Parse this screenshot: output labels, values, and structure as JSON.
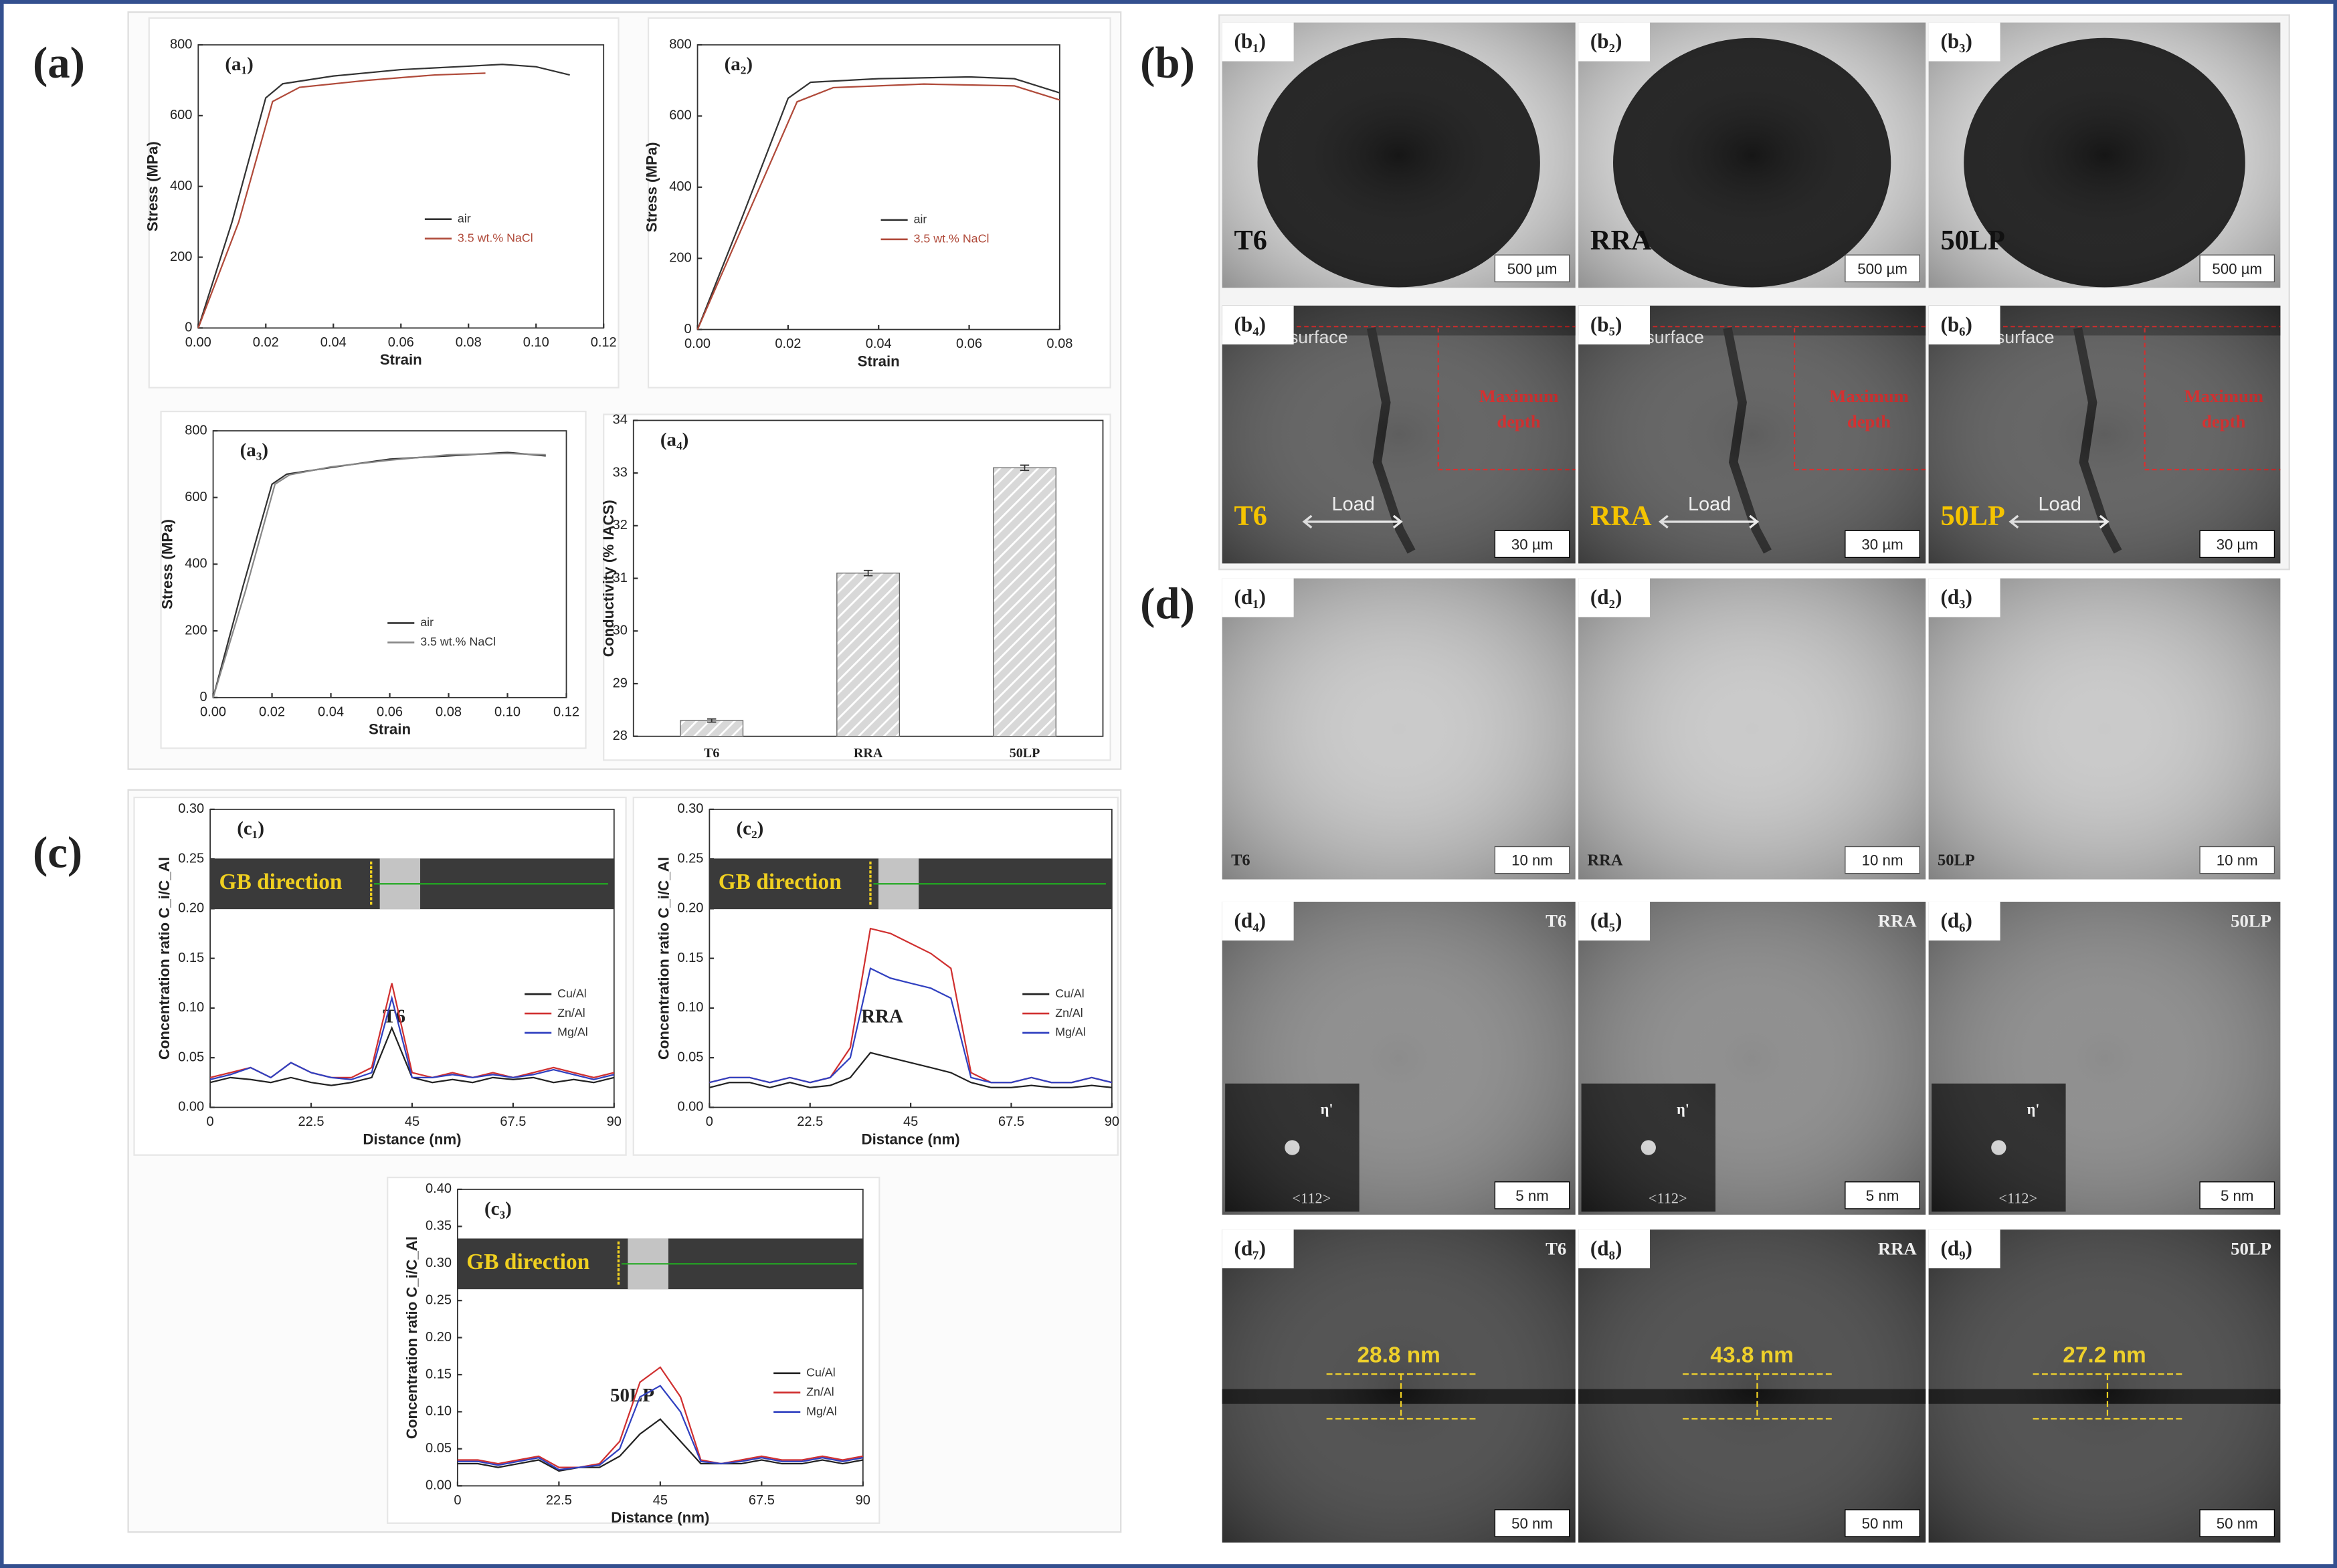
{
  "panels": {
    "a": "(a)",
    "b": "(b)",
    "c": "(c)",
    "d": "(d)"
  },
  "chart_data": [
    {
      "type": "line",
      "panel": "(a₁)",
      "xlabel": "Strain",
      "ylabel": "Stress (MPa)",
      "xlim": [
        0,
        0.12
      ],
      "ylim": [
        0,
        800
      ],
      "xticks": [
        {
          "value": 0,
          "label": "0.00"
        },
        0.02,
        0.04,
        0.06,
        0.08,
        {
          "value": 0.1,
          "label": "0.10"
        },
        0.12
      ],
      "yticks": [
        0,
        200,
        400,
        600,
        800
      ],
      "legend": "center-right",
      "series": [
        {
          "name": "air",
          "color": "#333333",
          "x": [
            0,
            0.01,
            0.02,
            0.025,
            0.04,
            0.06,
            0.08,
            0.09,
            0.1,
            0.11
          ],
          "values": [
            0,
            300,
            650,
            690,
            712,
            730,
            740,
            745,
            738,
            715
          ]
        },
        {
          "name": "3.5 wt.% NaCl",
          "color": "#b04a3a",
          "x": [
            0,
            0.012,
            0.022,
            0.03,
            0.05,
            0.07,
            0.085
          ],
          "values": [
            0,
            300,
            640,
            680,
            700,
            715,
            720
          ]
        }
      ]
    },
    {
      "type": "line",
      "panel": "(a₂)",
      "xlabel": "Strain",
      "ylabel": "Stress (MPa)",
      "xlim": [
        0,
        0.08
      ],
      "ylim": [
        0,
        800
      ],
      "xticks": [
        {
          "value": 0,
          "label": "0.00"
        },
        0.02,
        0.04,
        0.06,
        0.08
      ],
      "yticks": [
        0,
        200,
        400,
        600,
        800
      ],
      "legend": "center-right",
      "series": [
        {
          "name": "air",
          "color": "#333333",
          "x": [
            0,
            0.01,
            0.02,
            0.025,
            0.04,
            0.06,
            0.07,
            0.08
          ],
          "values": [
            0,
            320,
            650,
            695,
            705,
            710,
            705,
            665
          ]
        },
        {
          "name": "3.5 wt.% NaCl",
          "color": "#b04a3a",
          "x": [
            0,
            0.011,
            0.022,
            0.03,
            0.05,
            0.07,
            0.08
          ],
          "values": [
            0,
            320,
            640,
            680,
            690,
            685,
            645
          ]
        }
      ]
    },
    {
      "type": "line",
      "panel": "(a₃)",
      "xlabel": "Strain",
      "ylabel": "Stress (MPa)",
      "xlim": [
        0,
        0.12
      ],
      "ylim": [
        0,
        800
      ],
      "xticks": [
        {
          "value": 0,
          "label": "0.00"
        },
        0.02,
        0.04,
        0.06,
        0.08,
        {
          "value": 0.1,
          "label": "0.10"
        },
        0.12
      ],
      "yticks": [
        0,
        200,
        400,
        600,
        800
      ],
      "legend": "bottom-right",
      "series": [
        {
          "name": "air",
          "color": "#333333",
          "x": [
            0,
            0.01,
            0.02,
            0.025,
            0.04,
            0.06,
            0.08,
            0.1,
            0.113
          ],
          "values": [
            0,
            330,
            640,
            670,
            690,
            715,
            725,
            735,
            725
          ]
        },
        {
          "name": "3.5 wt.% NaCl",
          "color": "#888888",
          "x": [
            0,
            0.011,
            0.021,
            0.026,
            0.04,
            0.06,
            0.08,
            0.1,
            0.113
          ],
          "values": [
            0,
            320,
            640,
            668,
            692,
            712,
            728,
            732,
            728
          ]
        }
      ]
    },
    {
      "type": "bar",
      "panel": "(a₄)",
      "ylabel": "Conductivity (% IACS)",
      "categories": [
        "T6",
        "RRA",
        "50LP"
      ],
      "values": [
        28.3,
        31.1,
        33.1
      ],
      "errors": [
        0.03,
        0.05,
        0.05
      ],
      "color": "#cfcfcf",
      "ylim": [
        28,
        34
      ],
      "yticks": [
        28,
        29,
        30,
        31,
        32,
        33,
        34
      ]
    },
    {
      "type": "line",
      "panel": "(c₁)",
      "xlabel": "Distance (nm)",
      "ylabel": "Concentration ratio C_i/C_Al",
      "inset_label": "GB direction",
      "sample_label": "T6",
      "legend": "center-right",
      "xlim": [
        0,
        90
      ],
      "ylim": [
        0,
        0.3
      ],
      "xticks": [
        0,
        22.5,
        45,
        67.5,
        90
      ],
      "yticks": [
        {
          "value": 0,
          "label": "0.00"
        },
        0.05,
        {
          "value": 0.1,
          "label": "0.10"
        },
        0.15,
        {
          "value": 0.2,
          "label": "0.20"
        },
        0.25,
        {
          "value": 0.3,
          "label": "0.30"
        }
      ],
      "x": [
        0,
        4.5,
        9,
        13.5,
        18,
        22.5,
        27,
        31.5,
        36,
        40.5,
        45,
        49.5,
        54,
        58.5,
        63,
        67.5,
        72,
        76.5,
        81,
        85.5,
        90
      ],
      "series": [
        {
          "name": "Cu/Al",
          "color": "#222222",
          "values": [
            0.025,
            0.03,
            0.028,
            0.025,
            0.03,
            0.025,
            0.022,
            0.025,
            0.03,
            0.08,
            0.03,
            0.025,
            0.028,
            0.025,
            0.03,
            0.028,
            0.03,
            0.025,
            0.028,
            0.025,
            0.03
          ]
        },
        {
          "name": "Zn/Al",
          "color": "#d03030",
          "values": [
            0.03,
            0.035,
            0.04,
            0.03,
            0.045,
            0.035,
            0.03,
            0.03,
            0.04,
            0.125,
            0.035,
            0.03,
            0.035,
            0.03,
            0.035,
            0.03,
            0.035,
            0.04,
            0.035,
            0.03,
            0.035
          ]
        },
        {
          "name": "Mg/Al",
          "color": "#3040c0",
          "values": [
            0.028,
            0.033,
            0.04,
            0.03,
            0.045,
            0.035,
            0.03,
            0.028,
            0.035,
            0.11,
            0.03,
            0.03,
            0.033,
            0.03,
            0.033,
            0.03,
            0.033,
            0.038,
            0.033,
            0.028,
            0.033
          ]
        }
      ]
    },
    {
      "type": "line",
      "panel": "(c₂)",
      "xlabel": "Distance (nm)",
      "ylabel": "Concentration ratio C_i/C_Al",
      "inset_label": "GB direction",
      "sample_label": "RRA",
      "legend": "center-right",
      "xlim": [
        0,
        90
      ],
      "ylim": [
        0,
        0.3
      ],
      "xticks": [
        0,
        22.5,
        45,
        67.5,
        90
      ],
      "yticks": [
        {
          "value": 0,
          "label": "0.00"
        },
        0.05,
        {
          "value": 0.1,
          "label": "0.10"
        },
        0.15,
        {
          "value": 0.2,
          "label": "0.20"
        },
        0.25,
        {
          "value": 0.3,
          "label": "0.30"
        }
      ],
      "x": [
        0,
        4.5,
        9,
        13.5,
        18,
        22.5,
        27,
        31.5,
        36,
        40.5,
        45,
        49.5,
        54,
        58.5,
        63,
        67.5,
        72,
        76.5,
        81,
        85.5,
        90
      ],
      "series": [
        {
          "name": "Cu/Al",
          "color": "#222222",
          "values": [
            0.02,
            0.025,
            0.025,
            0.02,
            0.025,
            0.02,
            0.022,
            0.03,
            0.055,
            0.05,
            0.045,
            0.04,
            0.035,
            0.025,
            0.02,
            0.02,
            0.022,
            0.02,
            0.02,
            0.022,
            0.02
          ]
        },
        {
          "name": "Zn/Al",
          "color": "#d03030",
          "values": [
            0.025,
            0.03,
            0.03,
            0.025,
            0.03,
            0.025,
            0.03,
            0.06,
            0.18,
            0.175,
            0.165,
            0.155,
            0.14,
            0.035,
            0.025,
            0.025,
            0.03,
            0.025,
            0.025,
            0.03,
            0.025
          ]
        },
        {
          "name": "Mg/Al",
          "color": "#3040c0",
          "values": [
            0.025,
            0.03,
            0.03,
            0.025,
            0.03,
            0.025,
            0.03,
            0.05,
            0.14,
            0.13,
            0.125,
            0.12,
            0.11,
            0.03,
            0.025,
            0.025,
            0.03,
            0.025,
            0.025,
            0.03,
            0.025
          ]
        }
      ]
    },
    {
      "type": "line",
      "panel": "(c₃)",
      "xlabel": "Distance (nm)",
      "ylabel": "Concentration ratio C_i/C_Al",
      "inset_label": "GB direction",
      "sample_label": "50LP",
      "legend": "center-right",
      "xlim": [
        0,
        90
      ],
      "ylim": [
        0,
        0.4
      ],
      "xticks": [
        0,
        22.5,
        45,
        67.5,
        90
      ],
      "yticks": [
        {
          "value": 0,
          "label": "0.00"
        },
        0.05,
        {
          "value": 0.1,
          "label": "0.10"
        },
        0.15,
        {
          "value": 0.2,
          "label": "0.20"
        },
        0.25,
        {
          "value": 0.3,
          "label": "0.30"
        },
        0.35,
        {
          "value": 0.4,
          "label": "0.40"
        }
      ],
      "x": [
        0,
        4.5,
        9,
        13.5,
        18,
        22.5,
        27,
        31.5,
        36,
        40.5,
        45,
        49.5,
        54,
        58.5,
        63,
        67.5,
        72,
        76.5,
        81,
        85.5,
        90
      ],
      "series": [
        {
          "name": "Cu/Al",
          "color": "#222222",
          "values": [
            0.03,
            0.03,
            0.025,
            0.03,
            0.035,
            0.02,
            0.025,
            0.025,
            0.04,
            0.07,
            0.09,
            0.06,
            0.03,
            0.03,
            0.03,
            0.035,
            0.03,
            0.03,
            0.035,
            0.03,
            0.035
          ]
        },
        {
          "name": "Zn/Al",
          "color": "#d03030",
          "values": [
            0.035,
            0.035,
            0.03,
            0.035,
            0.04,
            0.025,
            0.025,
            0.03,
            0.06,
            0.14,
            0.16,
            0.12,
            0.035,
            0.03,
            0.035,
            0.04,
            0.035,
            0.035,
            0.04,
            0.035,
            0.04
          ]
        },
        {
          "name": "Mg/Al",
          "color": "#3040c0",
          "values": [
            0.033,
            0.033,
            0.028,
            0.033,
            0.038,
            0.022,
            0.025,
            0.028,
            0.05,
            0.12,
            0.135,
            0.1,
            0.033,
            0.03,
            0.033,
            0.038,
            0.033,
            0.033,
            0.038,
            0.033,
            0.038
          ]
        }
      ]
    }
  ],
  "micrographs": [
    {
      "label": "(b₁)",
      "sample": "T6",
      "scale": "500 µm"
    },
    {
      "label": "(b₂)",
      "sample": "RRA",
      "scale": "500 µm"
    },
    {
      "label": "(b₃)",
      "sample": "50LP",
      "scale": "500 µm"
    },
    {
      "label": "(b₄)",
      "sample": "T6",
      "scale": "30 µm",
      "surface": "surface",
      "load": "Load",
      "depth": [
        "Maximum",
        "depth"
      ]
    },
    {
      "label": "(b₅)",
      "sample": "RRA",
      "scale": "30 µm",
      "surface": "surface",
      "load": "Load",
      "depth": [
        "Maximum",
        "depth"
      ]
    },
    {
      "label": "(b₆)",
      "sample": "50LP",
      "scale": "30 µm",
      "surface": "surface",
      "load": "Load",
      "depth": [
        "Maximum",
        "depth"
      ]
    },
    {
      "label": "(d₁)",
      "sample": "T6",
      "scale": "10 nm"
    },
    {
      "label": "(d₂)",
      "sample": "RRA",
      "scale": "10 nm"
    },
    {
      "label": "(d₃)",
      "sample": "50LP",
      "scale": "10 nm"
    },
    {
      "label": "(d₄)",
      "sample": "T6",
      "scale": "5 nm",
      "zone": "<112>",
      "phase": "η'"
    },
    {
      "label": "(d₅)",
      "sample": "RRA",
      "scale": "5 nm",
      "zone": "<112>",
      "phase": "η'"
    },
    {
      "label": "(d₆)",
      "sample": "50LP",
      "scale": "5 nm",
      "zone": "<112>",
      "phase": "η'"
    },
    {
      "label": "(d₇)",
      "sample": "T6",
      "scale": "50 nm",
      "width": "28.8 nm"
    },
    {
      "label": "(d₈)",
      "sample": "RRA",
      "scale": "50 nm",
      "width": "43.8 nm"
    },
    {
      "label": "(d₉)",
      "sample": "50LP",
      "scale": "50 nm",
      "width": "27.2 nm"
    }
  ]
}
